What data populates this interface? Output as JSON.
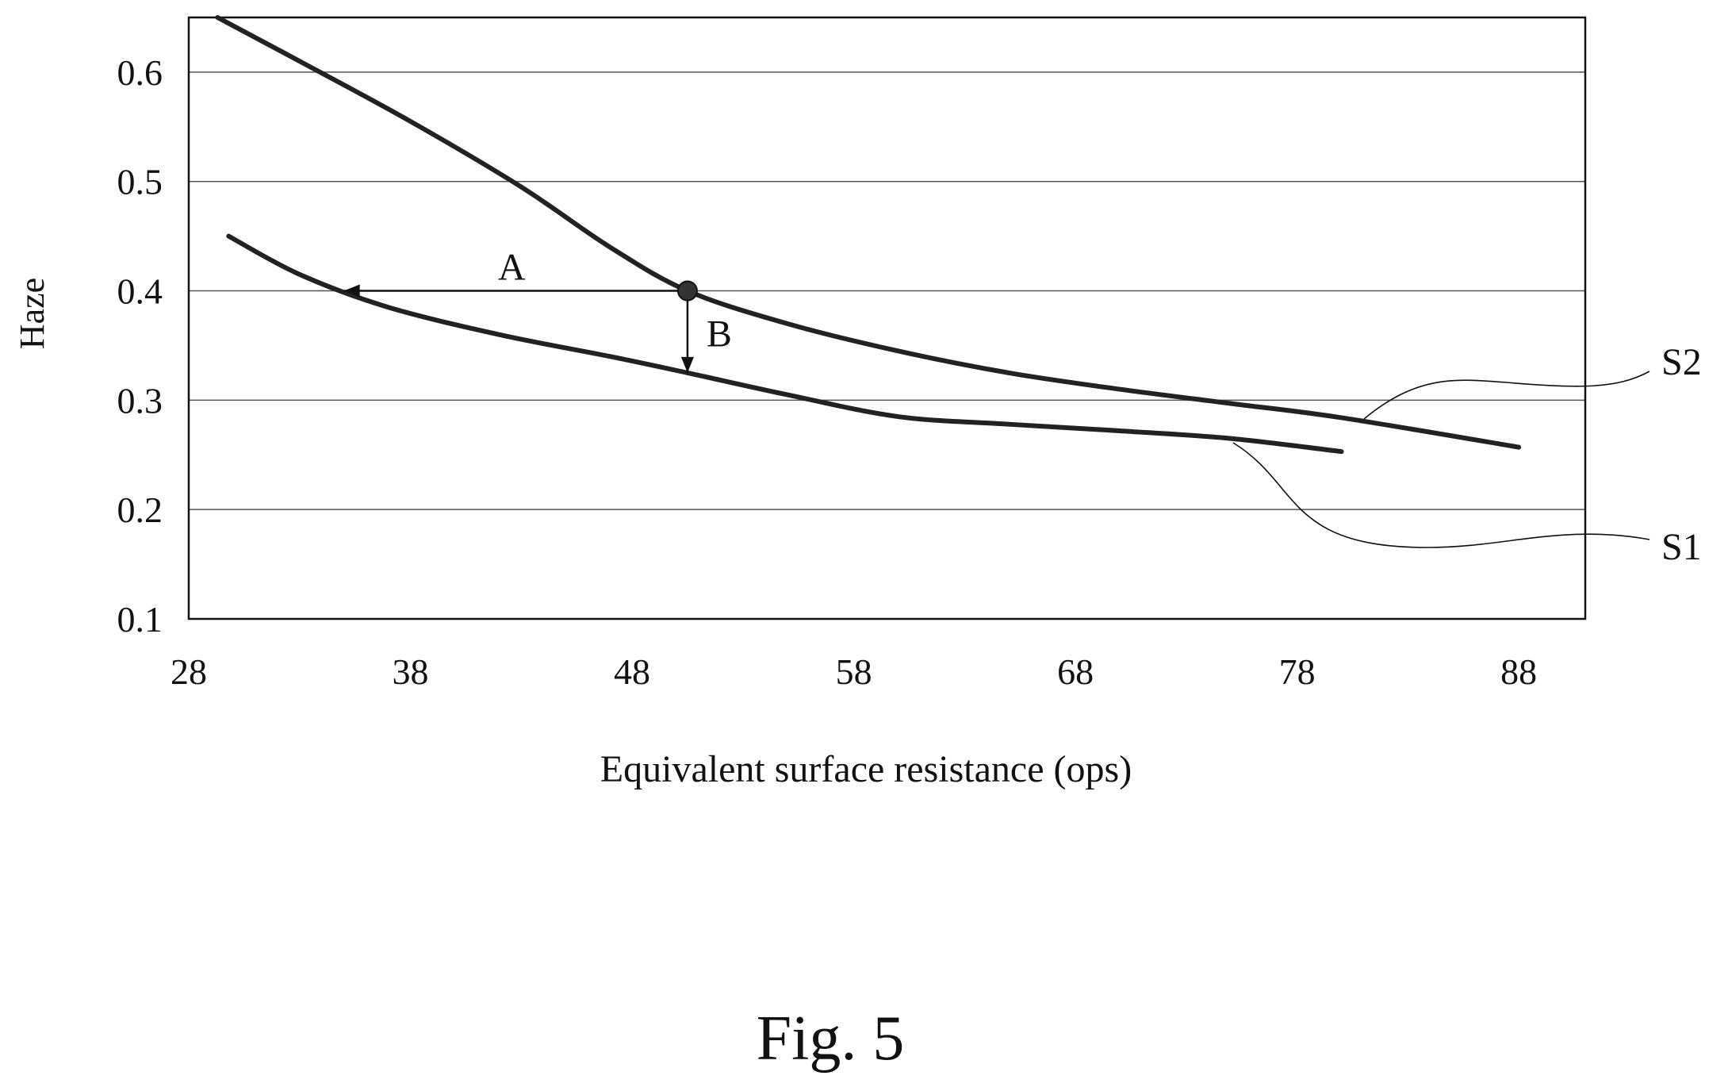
{
  "figure_label": "Fig. 5",
  "chart_data": {
    "type": "line",
    "xlabel": "Equivalent surface resistance (ops)",
    "ylabel": "Haze",
    "xlim": [
      28,
      91
    ],
    "ylim": [
      0.1,
      0.65
    ],
    "xticks": [
      28,
      38,
      48,
      58,
      68,
      78,
      88
    ],
    "xtick_labels": [
      "28",
      "38",
      "48",
      "58",
      "68",
      "78",
      "88"
    ],
    "yticks": [
      0.1,
      0.2,
      0.3,
      0.4,
      0.5,
      0.6
    ],
    "ytick_labels": [
      "0.1",
      "0.2",
      "0.3",
      "0.4",
      "0.5",
      "0.6"
    ],
    "grid": "horizontal",
    "series": [
      {
        "name": "S2",
        "x": [
          29.3,
          33,
          38,
          43,
          47,
          50.5,
          55,
          60,
          65,
          70,
          75,
          80,
          88
        ],
        "y": [
          0.65,
          0.61,
          0.555,
          0.495,
          0.44,
          0.4,
          0.37,
          0.345,
          0.325,
          0.31,
          0.297,
          0.284,
          0.257
        ]
      },
      {
        "name": "S1",
        "x": [
          29.8,
          33,
          37,
          42,
          47,
          50.5,
          55,
          60,
          65,
          70,
          75,
          80
        ],
        "y": [
          0.45,
          0.415,
          0.385,
          0.36,
          0.34,
          0.325,
          0.305,
          0.285,
          0.278,
          0.272,
          0.265,
          0.253
        ]
      }
    ],
    "annotations": [
      {
        "label": "A",
        "from": [
          50.5,
          0.4
        ],
        "to": [
          35,
          0.4
        ]
      },
      {
        "label": "B",
        "from": [
          50.5,
          0.4
        ],
        "to": [
          50.5,
          0.325
        ]
      }
    ],
    "marked_point": [
      50.5,
      0.4
    ]
  }
}
